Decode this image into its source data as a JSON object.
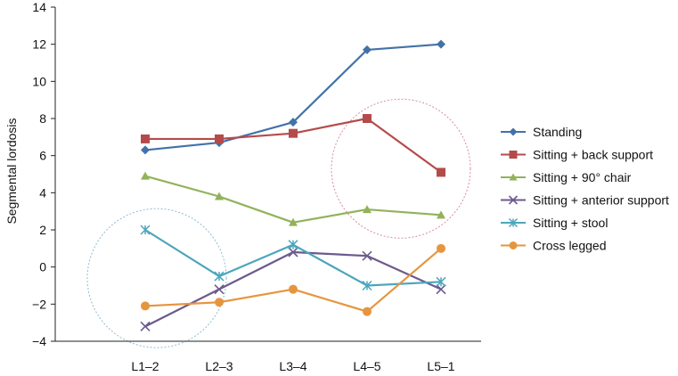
{
  "chart_data": {
    "type": "line",
    "title": "",
    "xlabel": "",
    "ylabel": "Segmental lordosis",
    "ylim": [
      -4,
      14
    ],
    "yticks": [
      14,
      12,
      10,
      8,
      6,
      4,
      2,
      0,
      -2,
      -4
    ],
    "ytick_labels": [
      "14",
      "12",
      "10",
      "8",
      "6",
      "4",
      "2",
      "0",
      "−2",
      "−4"
    ],
    "categories": [
      "L1–2",
      "L2–3",
      "L3–4",
      "L4–5",
      "L5–1"
    ],
    "grid": false,
    "legend_position": "right",
    "series": [
      {
        "name": "Standing",
        "color": "#4372a8",
        "marker": "diamond",
        "values": [
          6.3,
          6.7,
          7.8,
          11.7,
          12.0
        ]
      },
      {
        "name": "Sitting + back support",
        "color": "#b44b4b",
        "marker": "square",
        "values": [
          6.9,
          6.9,
          7.2,
          8.0,
          5.1
        ]
      },
      {
        "name": "Sitting + 90° chair",
        "color": "#92b25a",
        "marker": "triangle",
        "values": [
          4.9,
          3.8,
          2.4,
          3.1,
          2.8
        ]
      },
      {
        "name": "Sitting + anterior support",
        "color": "#6c5a8c",
        "marker": "x",
        "values": [
          -3.2,
          -1.2,
          0.8,
          0.6,
          -1.2
        ]
      },
      {
        "name": "Sitting + stool",
        "color": "#4ca6bc",
        "marker": "star",
        "values": [
          2.0,
          -0.5,
          1.2,
          -1.0,
          -0.8
        ]
      },
      {
        "name": "Cross legged",
        "color": "#e6953f",
        "marker": "circle",
        "values": [
          -2.1,
          -1.9,
          -1.2,
          -2.4,
          1.0
        ]
      }
    ],
    "annotations": [
      {
        "shape": "dashed-circle",
        "color": "#d98ca0",
        "center_category": "L4–5",
        "center_value": 5.3
      },
      {
        "shape": "dashed-circle",
        "color": "#8fbcd0",
        "center_category": "L1–2",
        "center_value": -0.6
      }
    ]
  }
}
